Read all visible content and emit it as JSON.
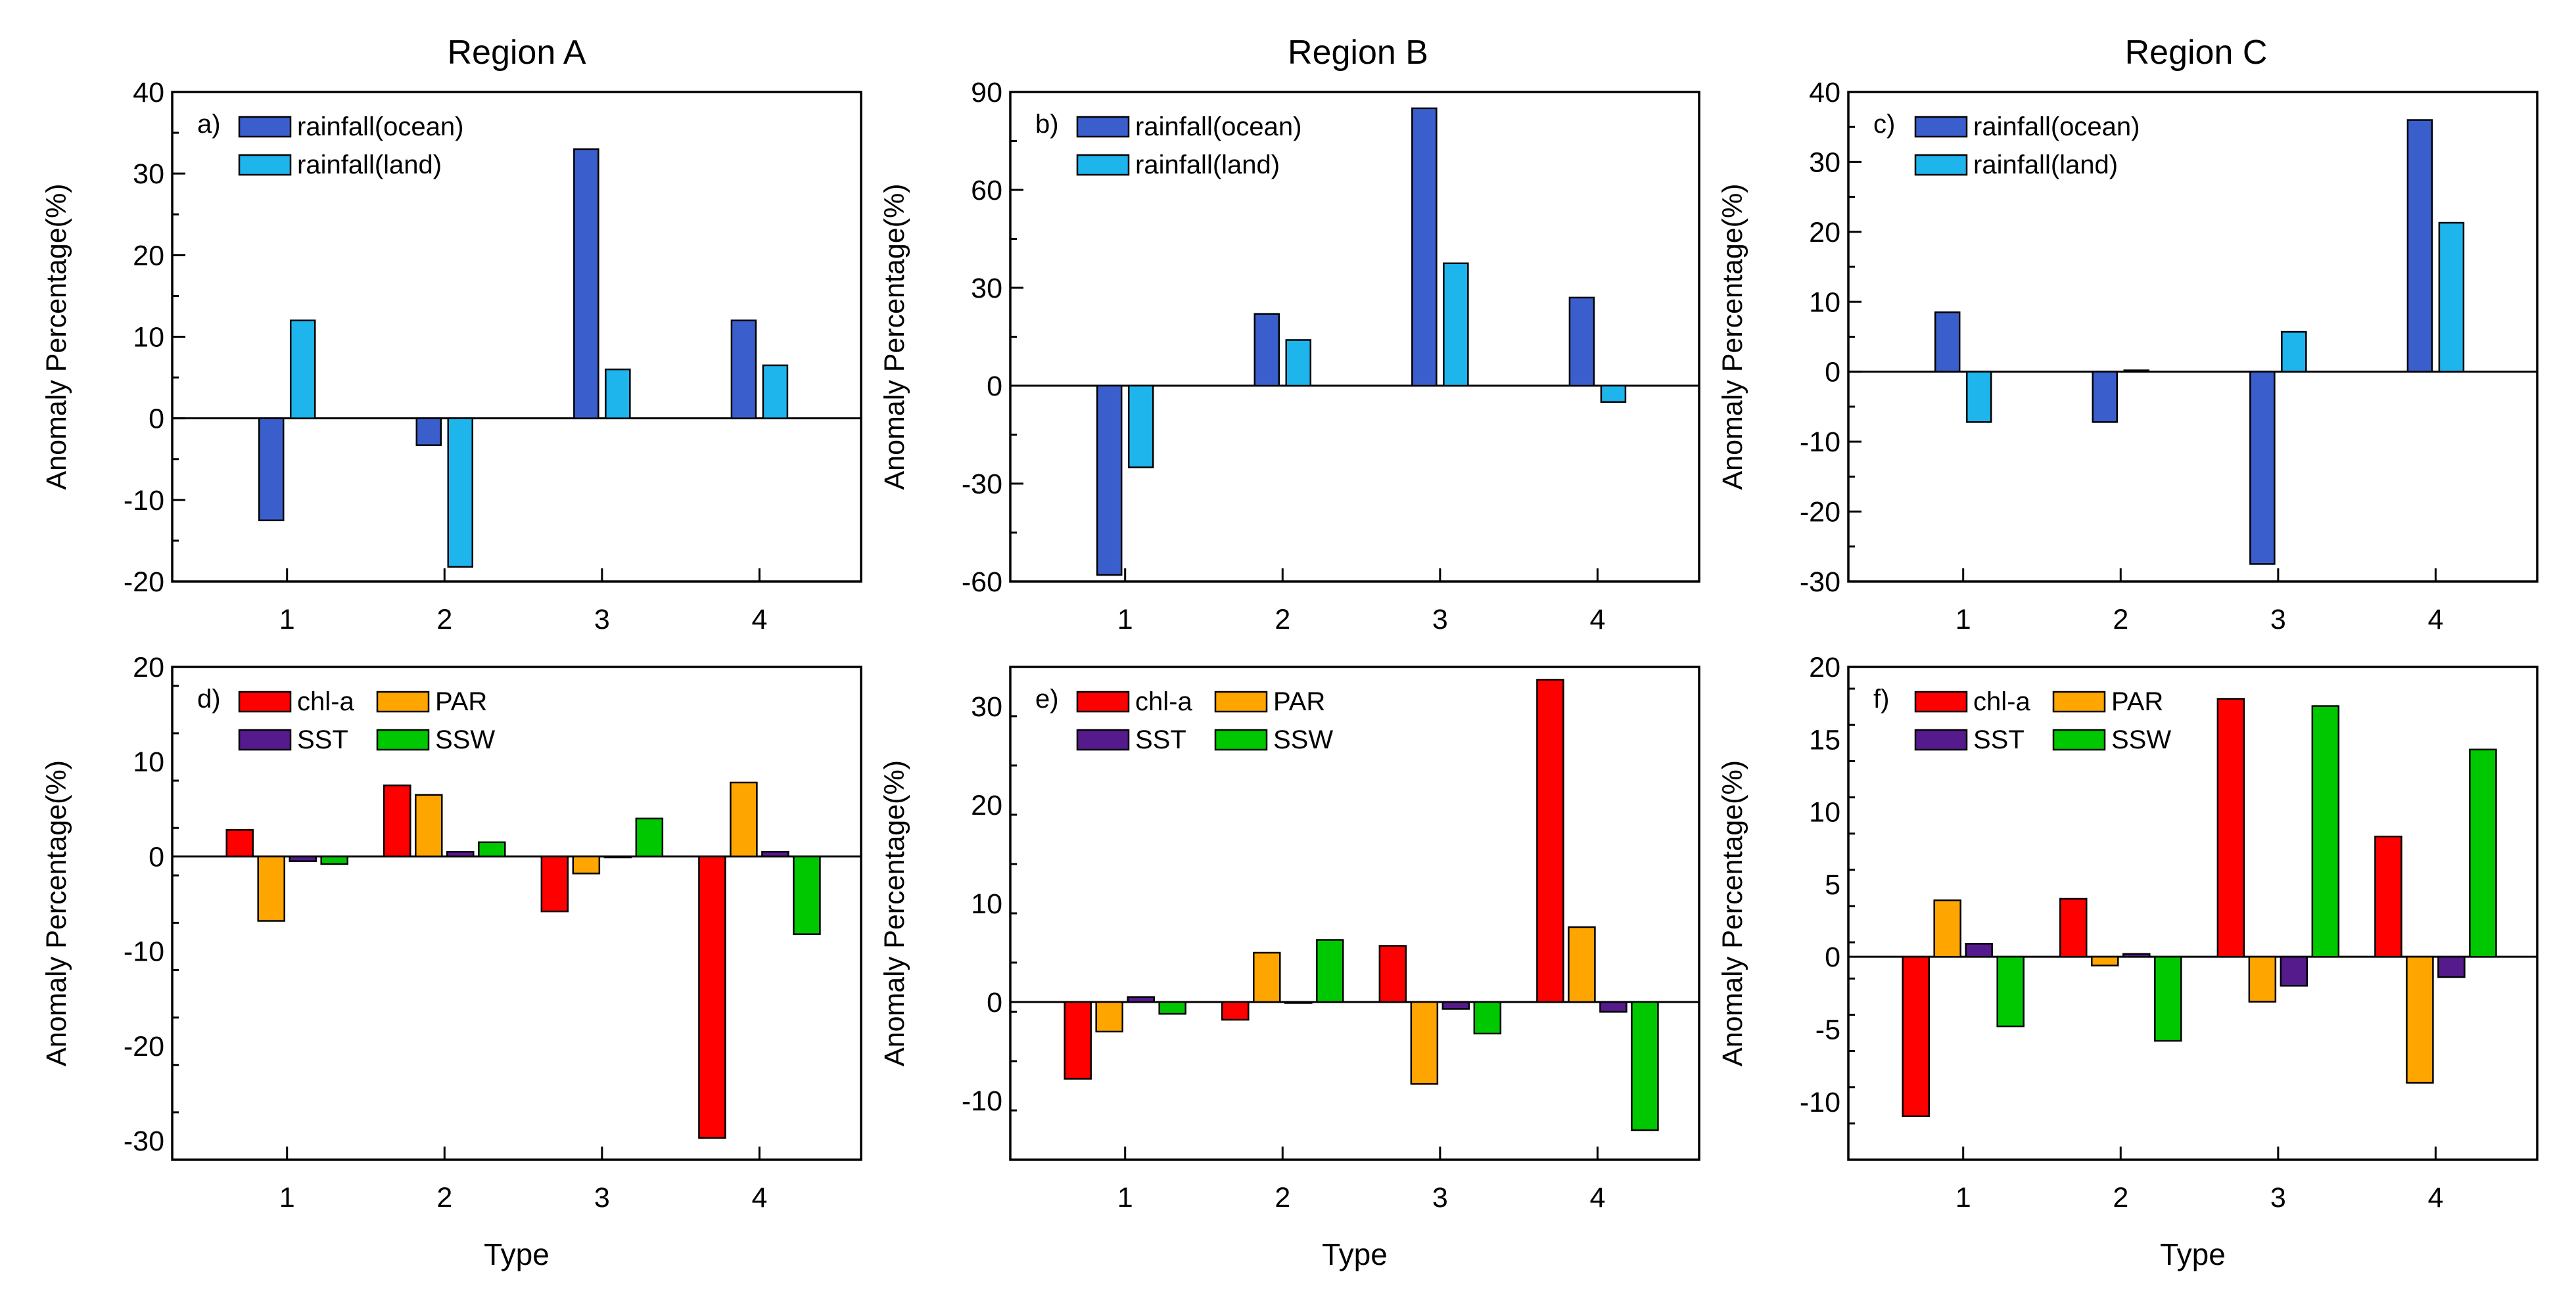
{
  "figure": {
    "regions": [
      "Region A",
      "Region B",
      "Region C"
    ]
  },
  "chart_data": [
    {
      "type": "bar",
      "panel": "a)",
      "region": "Region A",
      "categories": [
        "1",
        "2",
        "3",
        "4"
      ],
      "xlabel": "",
      "ylabel": "Anomaly Percentage(%)",
      "ylim": [
        -20,
        40
      ],
      "yticks": [
        -20,
        -10,
        0,
        10,
        20,
        30,
        40
      ],
      "legend_placement": "top-left",
      "legend_columns": 1,
      "series": [
        {
          "name": "rainfall(ocean)",
          "color": "#3a5fcd",
          "values": [
            -12.5,
            -3.3,
            33.0,
            12.0
          ]
        },
        {
          "name": "rainfall(land)",
          "color": "#1eb4ec",
          "values": [
            12.0,
            -18.2,
            6.0,
            6.5
          ]
        }
      ]
    },
    {
      "type": "bar",
      "panel": "b)",
      "region": "Region B",
      "categories": [
        "1",
        "2",
        "3",
        "4"
      ],
      "xlabel": "",
      "ylabel": "Anomaly Percentage(%)",
      "ylim": [
        -60,
        90
      ],
      "yticks": [
        -60,
        -30,
        0,
        30,
        60,
        90
      ],
      "legend_placement": "top-left",
      "legend_columns": 1,
      "series": [
        {
          "name": "rainfall(ocean)",
          "color": "#3a5fcd",
          "values": [
            -58.0,
            22.0,
            85.0,
            27.0
          ]
        },
        {
          "name": "rainfall(land)",
          "color": "#1eb4ec",
          "values": [
            -25.0,
            14.0,
            37.5,
            -5.0
          ]
        }
      ]
    },
    {
      "type": "bar",
      "panel": "c)",
      "region": "Region C",
      "categories": [
        "1",
        "2",
        "3",
        "4"
      ],
      "xlabel": "",
      "ylabel": "Anomaly Percentage(%)",
      "ylim": [
        -30,
        40
      ],
      "yticks": [
        -30,
        -20,
        -10,
        0,
        10,
        20,
        30,
        40
      ],
      "legend_placement": "top-left",
      "legend_columns": 1,
      "series": [
        {
          "name": "rainfall(ocean)",
          "color": "#3a5fcd",
          "values": [
            8.5,
            -7.2,
            -27.5,
            36.0
          ]
        },
        {
          "name": "rainfall(land)",
          "color": "#1eb4ec",
          "values": [
            -7.2,
            0.2,
            5.7,
            21.3
          ]
        }
      ]
    },
    {
      "type": "bar",
      "panel": "d)",
      "region": "Region A",
      "categories": [
        "1",
        "2",
        "3",
        "4"
      ],
      "xlabel": "Type",
      "ylabel": "Anomaly Percentage(%)",
      "ylim": [
        -32,
        20
      ],
      "yticks": [
        -30,
        -20,
        -10,
        0,
        10,
        20
      ],
      "legend_placement": "top-left",
      "legend_columns": 2,
      "series": [
        {
          "name": "chl-a",
          "color": "#ff0000",
          "values": [
            2.8,
            7.5,
            -5.8,
            -29.7
          ]
        },
        {
          "name": "PAR",
          "color": "#ffa500",
          "values": [
            -6.8,
            6.5,
            -1.8,
            7.8
          ]
        },
        {
          "name": "SST",
          "color": "#551a8b",
          "values": [
            -0.5,
            0.5,
            0.0,
            0.5
          ]
        },
        {
          "name": "SSW",
          "color": "#00c800",
          "values": [
            -0.8,
            1.5,
            4.0,
            -8.2
          ]
        }
      ]
    },
    {
      "type": "bar",
      "panel": "e)",
      "region": "Region B",
      "categories": [
        "1",
        "2",
        "3",
        "4"
      ],
      "xlabel": "Type",
      "ylabel": "Anomaly Percentage(%)",
      "ylim": [
        -16,
        34
      ],
      "yticks": [
        -10,
        0,
        10,
        20,
        30
      ],
      "legend_placement": "top-left",
      "legend_columns": 2,
      "series": [
        {
          "name": "chl-a",
          "color": "#ff0000",
          "values": [
            -7.8,
            -1.8,
            5.7,
            32.7
          ]
        },
        {
          "name": "PAR",
          "color": "#ffa500",
          "values": [
            -3.0,
            5.0,
            -8.3,
            7.6
          ]
        },
        {
          "name": "SST",
          "color": "#551a8b",
          "values": [
            0.5,
            0.0,
            -0.7,
            -1.0
          ]
        },
        {
          "name": "SSW",
          "color": "#00c800",
          "values": [
            -1.2,
            6.3,
            -3.2,
            -13.0
          ]
        }
      ]
    },
    {
      "type": "bar",
      "panel": "f)",
      "region": "Region C",
      "categories": [
        "1",
        "2",
        "3",
        "4"
      ],
      "xlabel": "Type",
      "ylabel": "Anomaly Percentage(%)",
      "ylim": [
        -14,
        20
      ],
      "yticks": [
        -10,
        -5,
        0,
        5,
        10,
        15,
        20
      ],
      "legend_placement": "top-left",
      "legend_columns": 2,
      "series": [
        {
          "name": "chl-a",
          "color": "#ff0000",
          "values": [
            -11.0,
            4.0,
            17.8,
            8.3
          ]
        },
        {
          "name": "PAR",
          "color": "#ffa500",
          "values": [
            3.9,
            -0.6,
            -3.1,
            -8.7
          ]
        },
        {
          "name": "SST",
          "color": "#551a8b",
          "values": [
            0.9,
            0.2,
            -2.0,
            -1.4
          ]
        },
        {
          "name": "SSW",
          "color": "#00c800",
          "values": [
            -4.8,
            -5.8,
            17.3,
            14.3
          ]
        }
      ]
    }
  ]
}
